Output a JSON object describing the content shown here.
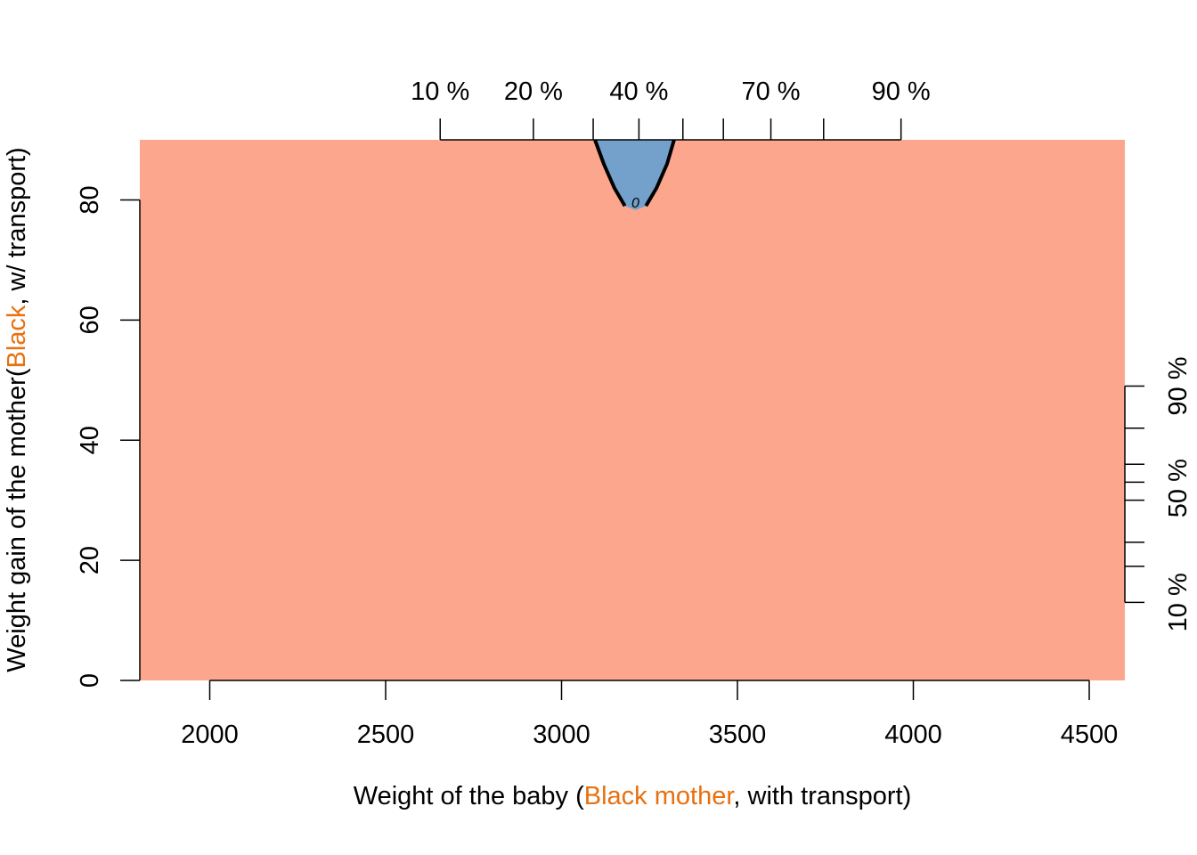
{
  "chart_data": {
    "type": "area",
    "xlabel_parts": [
      "Weight of the baby (",
      "Black mother",
      ", with transport)"
    ],
    "ylabel_parts": [
      "Weight gain of the mother(",
      "Black",
      ", w/ transport)"
    ],
    "xlim": [
      1800,
      4600
    ],
    "ylim": [
      0,
      90
    ],
    "xticks": [
      2000,
      2500,
      3000,
      3500,
      4000,
      4500
    ],
    "yticks": [
      0,
      20,
      40,
      60,
      80
    ],
    "top_quantiles": {
      "labels": [
        "10 %",
        "20 %",
        "40 %",
        "70 %",
        "90 %"
      ],
      "label_values": [
        2655,
        2920,
        3220,
        3595,
        3965
      ],
      "tick_values": [
        2655,
        2920,
        3090,
        3220,
        3345,
        3460,
        3595,
        3745,
        3965
      ]
    },
    "right_quantiles": {
      "labels": [
        "10 %",
        "50 %",
        "90 %"
      ],
      "label_values": [
        13,
        32,
        49
      ],
      "tick_values": [
        13,
        19,
        23,
        30,
        33,
        36,
        42,
        49
      ]
    },
    "regions": [
      {
        "name": "background",
        "color": "#FCA68E"
      },
      {
        "name": "region-0",
        "color": "#74A1CC",
        "boundary": [
          [
            3095,
            90
          ],
          [
            3120,
            86
          ],
          [
            3150,
            82
          ],
          [
            3180,
            79
          ],
          [
            3210,
            78.3
          ],
          [
            3240,
            79
          ],
          [
            3270,
            82
          ],
          [
            3300,
            86
          ],
          [
            3320,
            90
          ]
        ]
      }
    ],
    "contour_label": "0",
    "contour_label_point": [
      3210,
      79.6
    ],
    "contour_color": "#000000",
    "axis_label_highlight_color": "#E8700E"
  }
}
